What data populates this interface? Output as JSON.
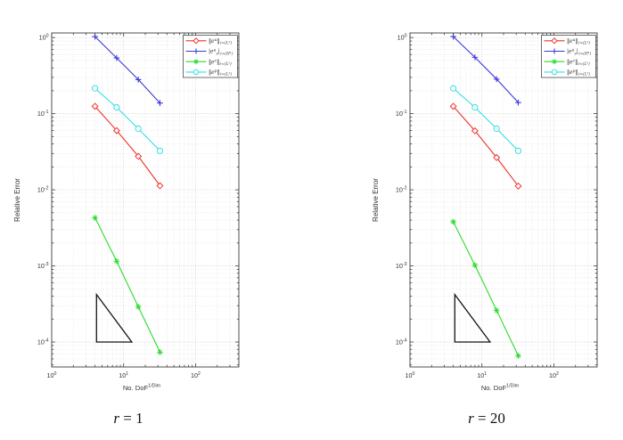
{
  "figures": [
    {
      "caption": {
        "var": "r",
        "rest": " = 1"
      }
    },
    {
      "caption": {
        "var": "r",
        "rest": " = 20"
      }
    }
  ],
  "style": {
    "background": "#ffffff",
    "axis_color": "#3c3c3c",
    "tick_label_color": "#3c3c3c",
    "grid_major_color": "#c7c7c7",
    "grid_minor_color": "#e0e0e0",
    "triangle_color": "#141414",
    "legend_border_color": "#4a4a4a"
  },
  "chart_data": [
    {
      "type": "line",
      "title": "r = 1",
      "xlabel": "No. DoF",
      "xlabel_sup": "1/Dim",
      "ylabel": "Relative Error",
      "xscale": "log",
      "yscale": "log",
      "xlim": [
        1,
        400
      ],
      "ylim": [
        4.7e-05,
        1.15
      ],
      "xtick_exponents": [
        0,
        1,
        2
      ],
      "ytick_exponents": [
        0,
        -1,
        -2,
        -3,
        -4
      ],
      "grid": true,
      "legend_position": "top-right",
      "x": [
        4,
        8,
        16,
        32
      ],
      "series": [
        {
          "id": "eu-l2",
          "label": "‖e^{u}‖_{ℓ∞(L²)}",
          "color": "#ee342b",
          "marker": "diamond",
          "values": [
            0.125,
            0.06,
            0.0275,
            0.0113
          ]
        },
        {
          "id": "eus-h1",
          "label": "|e^{u}_{s}|_{ℓ∞(H¹)}",
          "color": "#3939dd",
          "marker": "plus",
          "values": [
            1.03,
            0.54,
            0.28,
            0.138
          ]
        },
        {
          "id": "ec-l2",
          "label": "‖e^{c}‖_{ℓ∞(L²)}",
          "color": "#2bdc2b",
          "marker": "asterisk",
          "values": [
            0.0043,
            0.00115,
            0.00029,
            7.35e-05
          ]
        },
        {
          "id": "ep-l2",
          "label": "‖e^{p}‖_{ℓ∞(L²)}",
          "color": "#35dfe2",
          "marker": "circle",
          "values": [
            0.215,
            0.121,
            0.0635,
            0.0325
          ]
        }
      ],
      "rate_triangle": [
        [
          4.2,
          0.00042
        ],
        [
          4.2,
          0.0001
        ],
        [
          13,
          0.0001
        ]
      ]
    },
    {
      "type": "line",
      "title": "r = 20",
      "xlabel": "No. DoF",
      "xlabel_sup": "1/Dim",
      "ylabel": "Relative Error",
      "xscale": "log",
      "yscale": "log",
      "xlim": [
        1,
        400
      ],
      "ylim": [
        4.7e-05,
        1.15
      ],
      "xtick_exponents": [
        0,
        1,
        2
      ],
      "ytick_exponents": [
        0,
        -1,
        -2,
        -3,
        -4
      ],
      "grid": true,
      "legend_position": "top-right",
      "x": [
        4,
        8,
        16,
        32
      ],
      "series": [
        {
          "id": "eu-l2",
          "label": "‖e^{u}‖_{ℓ∞(L²)}",
          "color": "#ee342b",
          "marker": "diamond",
          "values": [
            0.125,
            0.0595,
            0.0265,
            0.0112
          ]
        },
        {
          "id": "eus-h1",
          "label": "|e^{u}_{s}|_{ℓ∞(H¹)}",
          "color": "#3939dd",
          "marker": "plus",
          "values": [
            1.03,
            0.55,
            0.285,
            0.14
          ]
        },
        {
          "id": "ec-l2",
          "label": "‖e^{c}‖_{ℓ∞(L²)}",
          "color": "#2bdc2b",
          "marker": "asterisk",
          "values": [
            0.0038,
            0.00102,
            0.00026,
            6.6e-05
          ]
        },
        {
          "id": "ep-l2",
          "label": "‖e^{p}‖_{ℓ∞(L²)}",
          "color": "#35dfe2",
          "marker": "circle",
          "values": [
            0.215,
            0.121,
            0.0635,
            0.0325
          ]
        }
      ],
      "rate_triangle": [
        [
          4.2,
          0.00042
        ],
        [
          4.2,
          0.0001
        ],
        [
          13,
          0.0001
        ]
      ]
    }
  ]
}
